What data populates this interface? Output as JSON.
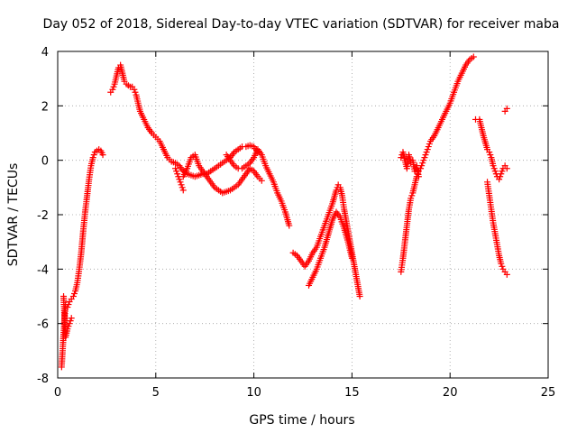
{
  "chart_data": {
    "type": "scatter",
    "title": "Day 052 of 2018, Sidereal Day-to-day VTEC variation (SDTVAR) for receiver maba",
    "xlabel": "GPS time / hours",
    "ylabel": "SDTVAR / TECUs",
    "xlim": [
      0,
      25
    ],
    "ylim": [
      -8,
      4
    ],
    "xticks": [
      "0",
      "5",
      "10",
      "15",
      "20",
      "25"
    ],
    "yticks": [
      "-8",
      "-6",
      "-4",
      "-2",
      "0",
      "2",
      "4"
    ],
    "grid": true,
    "marker": "plus",
    "color": "#ff0000",
    "series": [
      {
        "name": "seg1",
        "x": [
          0.2,
          0.25,
          0.3,
          0.35,
          0.4,
          0.5,
          0.6,
          0.7,
          0.8,
          0.9,
          1.0,
          1.1,
          1.2,
          1.3,
          1.4,
          1.5,
          1.6,
          1.7,
          1.8,
          1.9,
          2.0,
          2.1,
          2.2,
          2.3
        ],
        "y": [
          -7.6,
          -7.0,
          -6.4,
          -5.8,
          -5.3,
          -5.4,
          -5.2,
          -5.1,
          -5.0,
          -4.8,
          -4.5,
          -4.0,
          -3.4,
          -2.6,
          -1.9,
          -1.3,
          -0.7,
          -0.2,
          0.1,
          0.3,
          0.35,
          0.4,
          0.35,
          0.2
        ]
      },
      {
        "name": "seg1b",
        "x": [
          0.3,
          0.4,
          0.5,
          0.6,
          0.7
        ],
        "y": [
          -5.0,
          -6.5,
          -6.2,
          -6.0,
          -5.8
        ]
      },
      {
        "name": "seg2",
        "x": [
          2.7,
          2.8,
          2.9,
          3.0,
          3.1,
          3.2,
          3.3,
          3.4,
          3.5,
          3.6,
          3.7,
          3.8,
          3.9,
          4.0,
          4.1,
          4.2,
          4.4,
          4.6,
          4.8,
          5.0,
          5.2,
          5.4,
          5.6,
          5.8,
          6.0,
          6.2,
          6.4,
          6.6,
          6.8,
          7.0,
          7.2,
          7.4,
          7.6,
          7.8,
          8.0,
          8.2,
          8.4,
          8.6,
          8.8,
          9.0,
          9.2,
          9.4,
          9.6,
          9.8,
          10.0,
          10.2
        ],
        "y": [
          2.5,
          2.6,
          2.8,
          3.1,
          3.4,
          3.5,
          3.2,
          2.9,
          2.8,
          2.75,
          2.7,
          2.7,
          2.6,
          2.4,
          2.1,
          1.8,
          1.5,
          1.2,
          1.0,
          0.85,
          0.7,
          0.4,
          0.1,
          -0.05,
          -0.1,
          -0.2,
          -0.4,
          -0.5,
          -0.55,
          -0.6,
          -0.55,
          -0.5,
          -0.5,
          -0.4,
          -0.3,
          -0.2,
          -0.1,
          0.0,
          0.1,
          0.3,
          0.4,
          0.5,
          0.5,
          0.55,
          0.5,
          0.3
        ]
      },
      {
        "name": "seg3",
        "x": [
          6.0,
          6.1,
          6.2,
          6.3,
          6.4
        ],
        "y": [
          -0.3,
          -0.5,
          -0.7,
          -0.9,
          -1.1
        ]
      },
      {
        "name": "seg4",
        "x": [
          6.4,
          6.6,
          6.8,
          7.0,
          7.2,
          7.4,
          7.6,
          7.8,
          8.0,
          8.2,
          8.4,
          8.6,
          8.8,
          9.0,
          9.2,
          9.4,
          9.6,
          9.8,
          10.0,
          10.2,
          10.4
        ],
        "y": [
          -0.6,
          -0.3,
          0.1,
          0.2,
          -0.2,
          -0.4,
          -0.6,
          -0.8,
          -1.0,
          -1.1,
          -1.2,
          -1.15,
          -1.1,
          -1.0,
          -0.9,
          -0.7,
          -0.5,
          -0.3,
          -0.4,
          -0.6,
          -0.75
        ]
      },
      {
        "name": "seg5",
        "x": [
          8.6,
          8.8,
          9.0,
          9.2,
          9.4,
          9.6,
          9.8,
          10.0,
          10.2,
          10.4,
          10.6,
          10.8,
          11.0,
          11.2,
          11.4,
          11.6,
          11.8
        ],
        "y": [
          0.2,
          0.0,
          -0.2,
          -0.3,
          -0.3,
          -0.2,
          -0.1,
          0.1,
          0.4,
          0.2,
          -0.2,
          -0.5,
          -0.8,
          -1.2,
          -1.5,
          -1.9,
          -2.4
        ]
      },
      {
        "name": "seg6",
        "x": [
          12.0,
          12.2,
          12.4,
          12.6,
          12.8,
          13.0,
          13.2,
          13.4,
          13.6,
          13.8,
          14.0,
          14.2,
          14.3,
          14.4,
          14.5,
          14.6,
          14.8,
          15.0,
          15.2,
          15.4
        ],
        "y": [
          -3.4,
          -3.5,
          -3.7,
          -3.9,
          -3.7,
          -3.4,
          -3.2,
          -2.8,
          -2.4,
          -2.0,
          -1.6,
          -1.1,
          -0.9,
          -1.0,
          -1.3,
          -1.8,
          -2.6,
          -3.4,
          -4.2,
          -5.0
        ]
      },
      {
        "name": "seg7",
        "x": [
          12.8,
          13.0,
          13.2,
          13.4,
          13.6,
          13.8,
          14.0,
          14.2,
          14.4,
          14.6,
          14.8,
          15.0
        ],
        "y": [
          -4.6,
          -4.3,
          -4.0,
          -3.6,
          -3.2,
          -2.7,
          -2.2,
          -1.9,
          -2.1,
          -2.5,
          -3.0,
          -3.6
        ]
      },
      {
        "name": "seg8",
        "x": [
          17.5,
          17.6,
          17.7,
          17.8,
          17.9,
          18.0,
          18.1,
          18.2,
          18.3,
          18.4,
          18.5,
          18.6,
          18.7,
          18.8,
          18.9,
          19.0,
          19.2,
          19.4,
          19.6,
          19.8,
          20.0,
          20.2,
          20.4,
          20.6,
          20.8,
          21.0,
          21.2
        ],
        "y": [
          -4.1,
          -3.6,
          -3.0,
          -2.4,
          -1.8,
          -1.4,
          -1.2,
          -0.9,
          -0.6,
          -0.4,
          -0.3,
          -0.1,
          0.1,
          0.3,
          0.5,
          0.7,
          0.9,
          1.2,
          1.5,
          1.8,
          2.1,
          2.5,
          2.9,
          3.2,
          3.5,
          3.7,
          3.8
        ]
      },
      {
        "name": "seg9",
        "x": [
          17.5,
          17.6,
          17.7,
          17.8,
          17.9,
          18.0,
          18.1,
          18.2,
          18.3,
          18.4
        ],
        "y": [
          0.1,
          0.3,
          0.0,
          -0.3,
          0.2,
          -0.1,
          0.0,
          -0.4,
          -0.2,
          -0.6
        ]
      },
      {
        "name": "seg10",
        "x": [
          21.3,
          21.5,
          21.7,
          21.9,
          22.0,
          22.1,
          22.2,
          22.3,
          22.4,
          22.5,
          22.6,
          22.7,
          22.8,
          22.9
        ],
        "y": [
          1.5,
          1.5,
          0.9,
          0.4,
          0.3,
          0.1,
          -0.2,
          -0.4,
          -0.6,
          -0.7,
          -0.5,
          -0.3,
          -0.2,
          -0.3
        ]
      },
      {
        "name": "seg11",
        "x": [
          21.9,
          22.0,
          22.1,
          22.2,
          22.3,
          22.4,
          22.5,
          22.6,
          22.7,
          22.8,
          22.9
        ],
        "y": [
          -0.8,
          -1.3,
          -1.8,
          -2.3,
          -2.7,
          -3.1,
          -3.5,
          -3.8,
          -4.0,
          -4.1,
          -4.2
        ]
      },
      {
        "name": "seg12",
        "x": [
          22.8,
          22.9
        ],
        "y": [
          1.8,
          1.9
        ]
      }
    ]
  }
}
